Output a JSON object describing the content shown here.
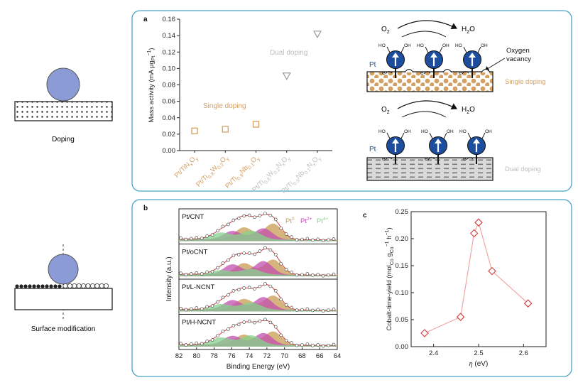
{
  "left_column": {
    "doping_caption": "Doping",
    "surface_caption": "Surface modification"
  },
  "panel_a": {
    "letter": "a",
    "single_doping_label": "Single doping",
    "dual_doping_label": "Dual doping",
    "diagram": {
      "o2": "O2",
      "h2o": "H2O",
      "pt": "Pt",
      "ho": "HO",
      "oh": "OH",
      "electron": "e",
      "oxygen_vacancy": "Oxygen vacancy",
      "single_label": "Single doping",
      "dual_label": "Dual doping"
    }
  },
  "panel_b": {
    "letter": "b",
    "legend": [
      "Pt0",
      "Pt2+",
      "Pt4+"
    ],
    "traces": [
      "Pt/CNT",
      "Pt/oCNT",
      "Pt/L-NCNT",
      "Pt/H-NCNT"
    ]
  },
  "panel_c": {
    "letter": "c"
  },
  "colors": {
    "frame": "#4aa3c8",
    "single": "#d4a062",
    "dual": "#bdbdbd",
    "pt_blue": "#1d4e9e",
    "ball": "#8b9bd6",
    "c_line": "#f2a5a5",
    "c_marker": "#d23b3b",
    "pt0": "#c89b52",
    "pt2": "#c24fb0",
    "pt4": "#84d38e"
  },
  "chart_data": [
    {
      "type": "scatter",
      "xlabel": "",
      "ylabel": "Mass activity (mA μg",
      "ylabel_sub": "Pt",
      "ylabel_sup": "−1",
      "ylabel_end": ")",
      "ylim": [
        0,
        0.16
      ],
      "yticks": [
        "0.00",
        "0.02",
        "0.04",
        "0.06",
        "0.08",
        "0.10",
        "0.12",
        "0.14",
        "0.16"
      ],
      "categories": [
        "Pt/TiNxOy",
        "Pt/Ti0.8W0.2Oy",
        "Pt/Ti0.9Nb0.1Oy",
        "Pt/Ti0.8W0.2NxOy",
        "Pt/Ti0.9Nb0.1NxOy"
      ],
      "category_labels": [
        {
          "parts": [
            [
              "Pt/TiN",
              ""
            ],
            [
              "x",
              "sub"
            ],
            [
              "O",
              ""
            ],
            [
              "y",
              "sub"
            ]
          ]
        },
        {
          "parts": [
            [
              "Pt/Ti",
              ""
            ],
            [
              "0.8",
              "sub"
            ],
            [
              "W",
              ""
            ],
            [
              "0.2",
              "sub"
            ],
            [
              "O",
              ""
            ],
            [
              "y",
              "sub"
            ]
          ]
        },
        {
          "parts": [
            [
              "Pt/Ti",
              ""
            ],
            [
              "0.9",
              "sub"
            ],
            [
              "Nb",
              ""
            ],
            [
              "0.1",
              "sub"
            ],
            [
              "O",
              ""
            ],
            [
              "y",
              "sub"
            ]
          ]
        },
        {
          "parts": [
            [
              "Pt/Ti",
              ""
            ],
            [
              "0.8",
              "sub"
            ],
            [
              "W",
              ""
            ],
            [
              "0.2",
              "sub"
            ],
            [
              "N",
              ""
            ],
            [
              "x",
              "sub"
            ],
            [
              "O",
              ""
            ],
            [
              "y",
              "sub"
            ]
          ]
        },
        {
          "parts": [
            [
              "Pt/Ti",
              ""
            ],
            [
              "0.9",
              "sub"
            ],
            [
              "Nb",
              ""
            ],
            [
              "0.1",
              "sub"
            ],
            [
              "N",
              ""
            ],
            [
              "x",
              "sub"
            ],
            [
              "O",
              ""
            ],
            [
              "y",
              "sub"
            ]
          ]
        }
      ],
      "series": [
        {
          "name": "Single doping",
          "x_index": [
            0,
            1,
            2
          ],
          "values": [
            0.024,
            0.026,
            0.032
          ],
          "marker": "square"
        },
        {
          "name": "Dual doping",
          "x_index": [
            3,
            4
          ],
          "values": [
            0.091,
            0.142
          ],
          "marker": "triangle-down"
        }
      ]
    },
    {
      "type": "line",
      "xlabel": "Binding Energy (eV)",
      "ylabel": "Intensity (a.u.)",
      "x_reversed": true,
      "xlim": [
        82,
        64
      ],
      "xticks": [
        82,
        80,
        78,
        76,
        74,
        72,
        70,
        68,
        66,
        64
      ],
      "peaks_eV": {
        "Pt0": [
          74.6,
          71.3
        ],
        "Pt2+": [
          75.9,
          72.4
        ],
        "Pt4+": [
          77.2,
          73.8
        ]
      },
      "series": [
        "Pt/CNT",
        "Pt/oCNT",
        "Pt/L-NCNT",
        "Pt/H-NCNT"
      ]
    },
    {
      "type": "line",
      "xlabel": "η (eV)",
      "ylabel": "Cobalt-time-yield (molCo gCo−1 h−1)",
      "xlim": [
        2.35,
        2.65
      ],
      "ylim": [
        0,
        0.25
      ],
      "xticks": [
        "2.4",
        "2.5",
        "2.6"
      ],
      "yticks": [
        "0.00",
        "0.05",
        "0.10",
        "0.15",
        "0.20",
        "0.25"
      ],
      "x": [
        2.38,
        2.46,
        2.49,
        2.5,
        2.53,
        2.61
      ],
      "values": [
        0.025,
        0.055,
        0.21,
        0.23,
        0.14,
        0.08
      ]
    }
  ]
}
